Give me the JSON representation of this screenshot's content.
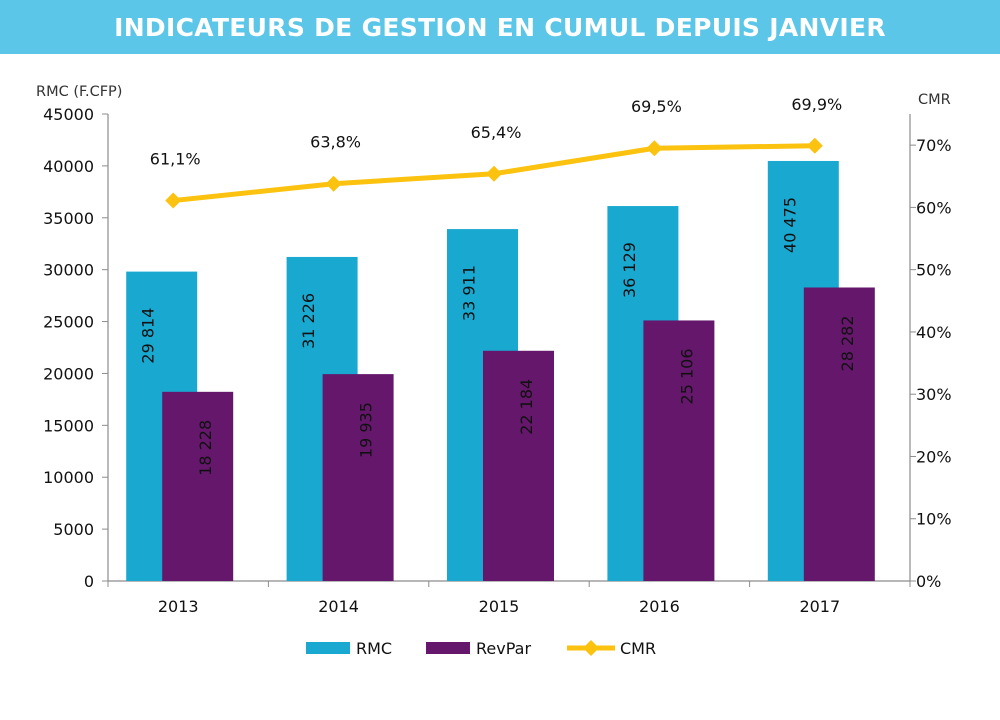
{
  "header": {
    "title": "INDICATEURS DE GESTION EN CUMUL DEPUIS JANVIER"
  },
  "colors": {
    "rmc": "#19a9d0",
    "revpar": "#64176b",
    "cmr": "#fbc20f",
    "header_bg": "#5bc6e8"
  },
  "chart_data": {
    "type": "bar",
    "title": "INDICATEURS DE GESTION EN CUMUL DEPUIS JANVIER",
    "categories": [
      "2013",
      "2014",
      "2015",
      "2016",
      "2017"
    ],
    "ylabel": "RMC (F.CFP)",
    "y2label": "CMR",
    "ylim": [
      0,
      45000
    ],
    "y2lim": [
      0,
      75
    ],
    "y_ticks": [
      "45000",
      "40000",
      "35000",
      "30000",
      "25000",
      "20000",
      "15000",
      "10000",
      "5000",
      "0"
    ],
    "y2_ticks": [
      "70%",
      "60%",
      "50%",
      "40%",
      "30%",
      "20%",
      "10%",
      "0%"
    ],
    "grid": false,
    "legend_position": "bottom",
    "series": [
      {
        "name": "RMC",
        "type": "bar",
        "axis": "left",
        "values": [
          29814,
          31226,
          33911,
          36129,
          40475
        ],
        "labels": [
          "29 814",
          "31 226",
          "33 911",
          "36 129",
          "40 475"
        ]
      },
      {
        "name": "RevPar",
        "type": "bar",
        "axis": "left",
        "values": [
          18228,
          19935,
          22184,
          25106,
          28282
        ],
        "labels": [
          "18 228",
          "19 935",
          "22 184",
          "25 106",
          "28 282"
        ]
      },
      {
        "name": "CMR",
        "type": "line",
        "axis": "right",
        "marker": "diamond",
        "values": [
          61.1,
          63.8,
          65.4,
          69.5,
          69.9
        ],
        "labels": [
          "61,1%",
          "63,8%",
          "65,4%",
          "69,5%",
          "69,9%"
        ]
      }
    ]
  }
}
